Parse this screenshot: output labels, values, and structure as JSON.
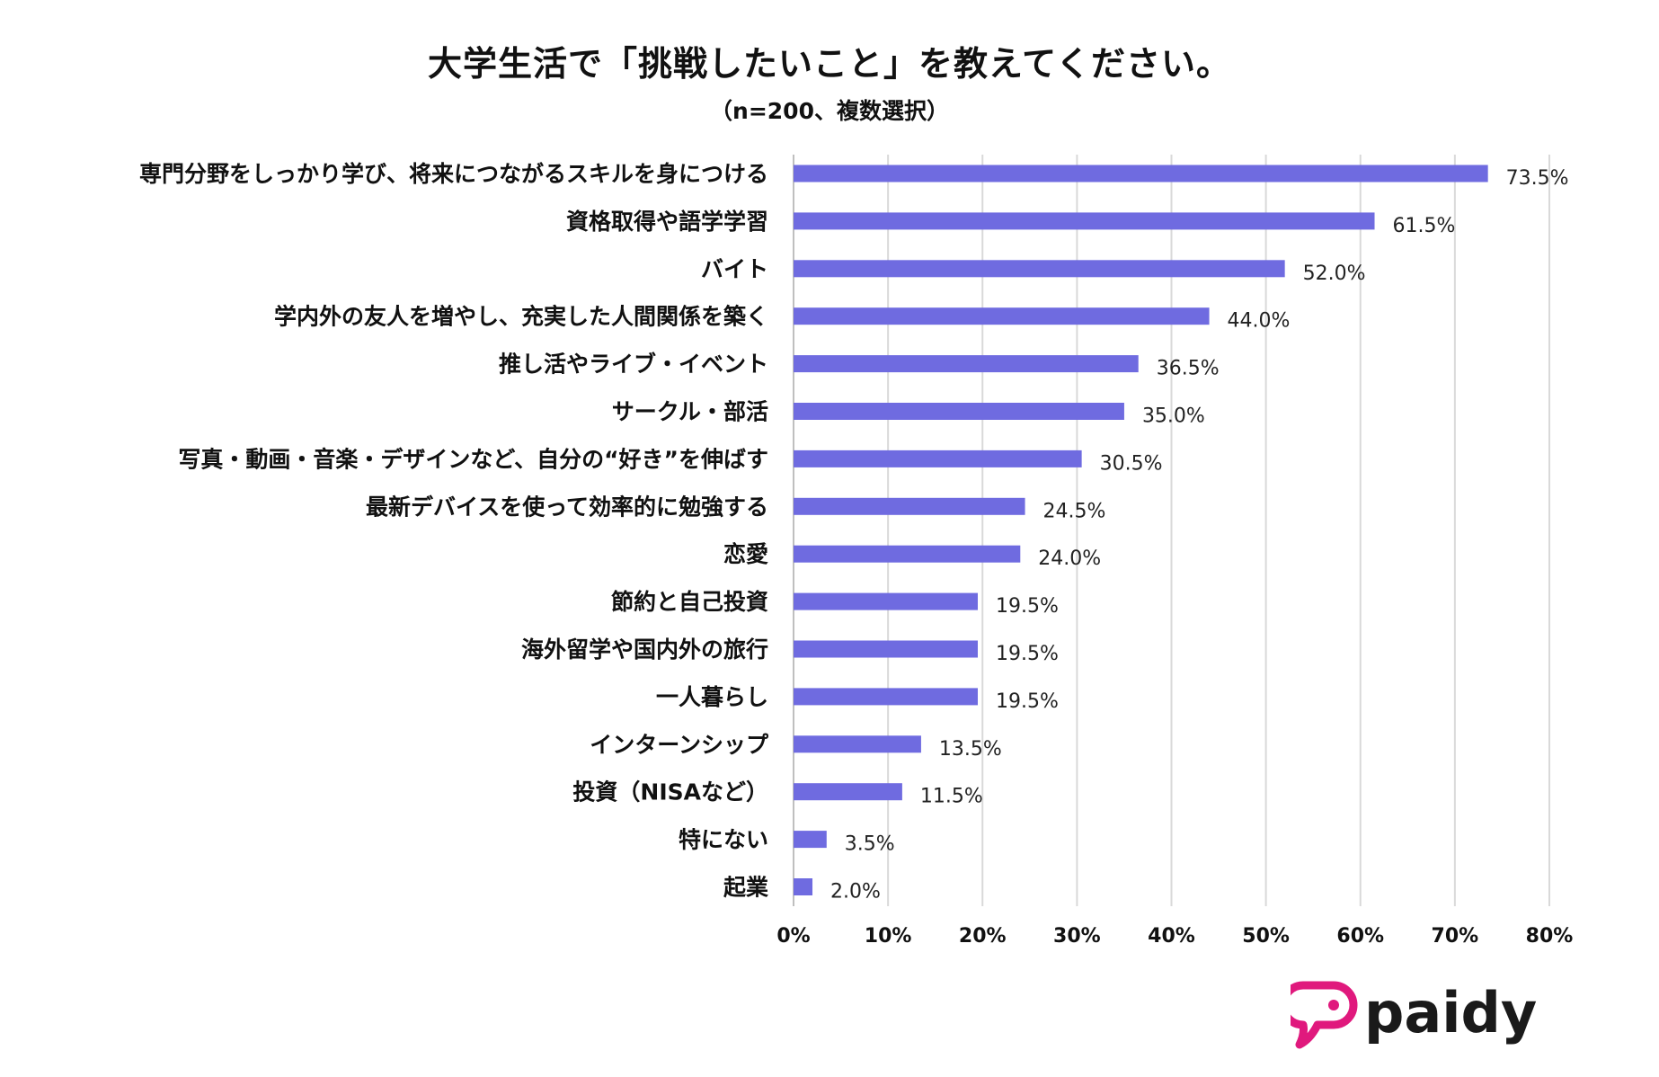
{
  "title": "大学生活で「挑戦したいこと」を教えてください。",
  "subtitle": "（n=200、複数選択）",
  "logo": {
    "text": "paidy",
    "mark_color": "#e0197d",
    "text_color": "#1a1a1a"
  },
  "chart_data": {
    "type": "bar",
    "orientation": "horizontal",
    "title": "大学生活で「挑戦したいこと」を教えてください。",
    "subtitle": "（n=200、複数選択）",
    "categories": [
      "専門分野をしっかり学び、将来につながるスキルを身につける",
      "資格取得や語学学習",
      "バイト",
      "学内外の友人を増やし、充実した人間関係を築く",
      "推し活やライブ・イベント",
      "サークル・部活",
      "写真・動画・音楽・デザインなど、自分の“好き”を伸ばす",
      "最新デバイスを使って効率的に勉強する",
      "恋愛",
      "節約と自己投資",
      "海外留学や国内外の旅行",
      "一人暮らし",
      "インターンシップ",
      "投資（NISAなど）",
      "特にない",
      "起業"
    ],
    "values": [
      73.5,
      61.5,
      52.0,
      44.0,
      36.5,
      35.0,
      30.5,
      24.5,
      24.0,
      19.5,
      19.5,
      19.5,
      13.5,
      11.5,
      3.5,
      2.0
    ],
    "value_labels": [
      "73.5%",
      "61.5%",
      "52.0%",
      "44.0%",
      "36.5%",
      "35.0%",
      "30.5%",
      "24.5%",
      "24.0%",
      "19.5%",
      "19.5%",
      "19.5%",
      "13.5%",
      "11.5%",
      "3.5%",
      "2.0%"
    ],
    "xlim": [
      0,
      80
    ],
    "x_ticks": [
      0,
      10,
      20,
      30,
      40,
      50,
      60,
      70,
      80
    ],
    "x_tick_labels": [
      "0%",
      "10%",
      "20%",
      "30%",
      "40%",
      "50%",
      "60%",
      "70%",
      "80%"
    ],
    "xlabel": "",
    "ylabel": "",
    "grid": true,
    "bar_color": "#6f6be0",
    "grid_color": "#d9d9d9"
  }
}
